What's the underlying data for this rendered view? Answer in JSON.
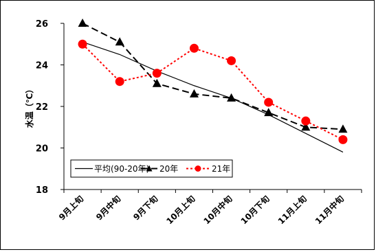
{
  "chart_data": {
    "type": "line",
    "categories": [
      "9月上旬",
      "9月中旬",
      "9月下旬",
      "10月上旬",
      "10月中旬",
      "10月下旬",
      "11月上旬",
      "11月中旬"
    ],
    "ylabel": "水温（℃）",
    "ylim": [
      18,
      26
    ],
    "yticks": [
      18,
      20,
      22,
      24,
      26
    ],
    "grid": false,
    "legend_position": "bottom-left",
    "series": [
      {
        "name": "平均(90-20年)",
        "values": [
          25.1,
          24.5,
          23.7,
          23.0,
          22.4,
          21.6,
          20.7,
          19.8
        ],
        "color": "#000000",
        "style": "solid",
        "marker": "none"
      },
      {
        "name": "20年",
        "values": [
          26.0,
          25.1,
          23.1,
          22.6,
          22.4,
          21.7,
          21.0,
          20.9
        ],
        "color": "#000000",
        "style": "dashed",
        "marker": "triangle"
      },
      {
        "name": "21年",
        "values": [
          25.0,
          23.2,
          23.6,
          24.8,
          24.2,
          22.2,
          21.3,
          20.4
        ],
        "color": "#ff0000",
        "style": "dotted",
        "marker": "circle"
      }
    ]
  }
}
